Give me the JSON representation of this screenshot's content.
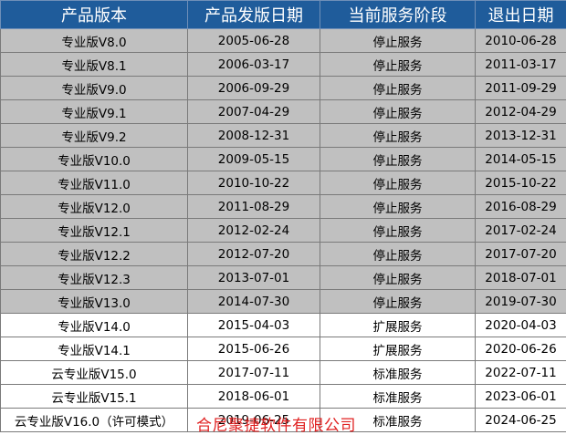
{
  "table": {
    "header": [
      "产品版本",
      "产品发版日期",
      "当前服务阶段",
      "退出日期"
    ],
    "rows": [
      [
        "专业版V8.0",
        "2005-06-28",
        "停止服务",
        "2010-06-28"
      ],
      [
        "专业版V8.1",
        "2006-03-17",
        "停止服务",
        "2011-03-17"
      ],
      [
        "专业版V9.0",
        "2006-09-29",
        "停止服务",
        "2011-09-29"
      ],
      [
        "专业版V9.1",
        "2007-04-29",
        "停止服务",
        "2012-04-29"
      ],
      [
        "专业版V9.2",
        "2008-12-31",
        "停止服务",
        "2013-12-31"
      ],
      [
        "专业版V10.0",
        "2009-05-15",
        "停止服务",
        "2014-05-15"
      ],
      [
        "专业版V11.0",
        "2010-10-22",
        "停止服务",
        "2015-10-22"
      ],
      [
        "专业版V12.0",
        "2011-08-29",
        "停止服务",
        "2016-08-29"
      ],
      [
        "专业版V12.1",
        "2012-02-24",
        "停止服务",
        "2017-02-24"
      ],
      [
        "专业版V12.2",
        "2012-07-20",
        "停止服务",
        "2017-07-20"
      ],
      [
        "专业版V12.3",
        "2013-07-01",
        "停止服务",
        "2018-07-01"
      ],
      [
        "专业版V13.0",
        "2014-07-30",
        "停止服务",
        "2019-07-30"
      ],
      [
        "专业版V14.0",
        "2015-04-03",
        "扩展服务",
        "2020-04-03"
      ],
      [
        "专业版V14.1",
        "2015-06-26",
        "扩展服务",
        "2020-06-26"
      ],
      [
        "云专业版V15.0",
        "2017-07-11",
        "标准服务",
        "2022-07-11"
      ],
      [
        "云专业版V15.1",
        "2018-06-01",
        "标准服务",
        "2023-06-01"
      ],
      [
        "云专业版V16.0（许可模式）",
        "2019-06-25",
        "标准服务",
        "2024-06-25"
      ]
    ]
  },
  "watermark": "合尼聚捷软件有限公司"
}
